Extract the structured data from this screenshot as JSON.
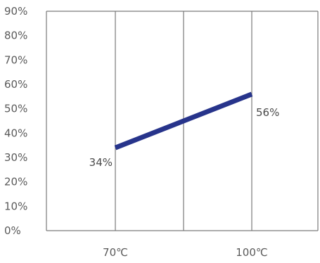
{
  "chart_data": {
    "type": "line",
    "title": "",
    "xlabel": "",
    "ylabel": "",
    "categories": [
      "70℃",
      "100℃"
    ],
    "series": [
      {
        "values": [
          34,
          56
        ],
        "labels": [
          "34%",
          "56%"
        ]
      }
    ],
    "ylim": [
      0,
      90
    ],
    "yticks": [
      "0%",
      "10%",
      "20%",
      "30%",
      "40%",
      "50%",
      "60%",
      "70%",
      "80%",
      "90%"
    ],
    "grid": "vertical",
    "line_color": "#27348b",
    "grid_color": "#7a7a7a"
  }
}
